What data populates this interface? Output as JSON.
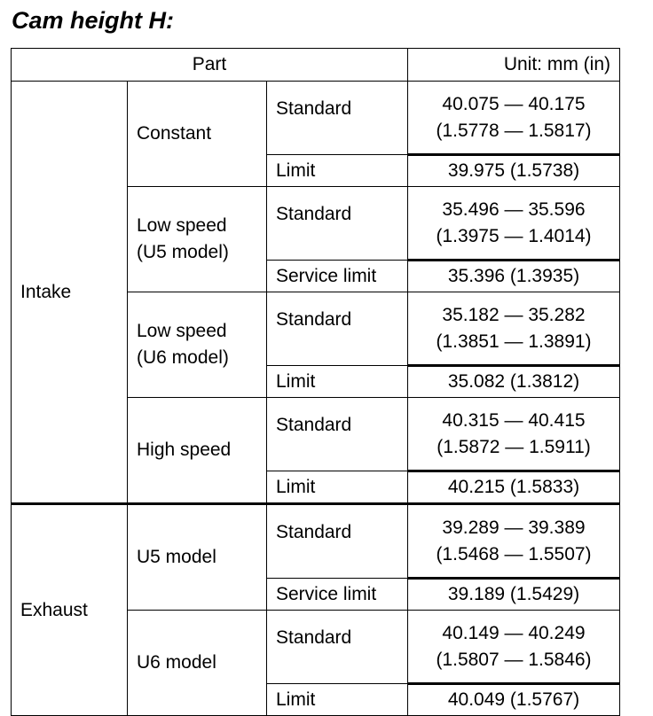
{
  "title": "Cam height H:",
  "table": {
    "header": {
      "part": "Part",
      "unit": "Unit: mm (in)"
    },
    "groups": [
      {
        "name": "Intake",
        "subgroups": [
          {
            "name": [
              "Constant"
            ],
            "items": [
              {
                "label": "Standard",
                "value": [
                  "40.075 — 40.175",
                  "(1.5778 — 1.5817)"
                ]
              },
              {
                "label": "Limit",
                "value": [
                  "39.975 (1.5738)"
                ]
              }
            ]
          },
          {
            "name": [
              "Low speed",
              "(U5 model)"
            ],
            "items": [
              {
                "label": "Standard",
                "value": [
                  "35.496 — 35.596",
                  "(1.3975 — 1.4014)"
                ]
              },
              {
                "label": "Service limit",
                "value": [
                  "35.396 (1.3935)"
                ]
              }
            ]
          },
          {
            "name": [
              "Low speed",
              "(U6 model)"
            ],
            "items": [
              {
                "label": "Standard",
                "value": [
                  "35.182 — 35.282",
                  "(1.3851 — 1.3891)"
                ]
              },
              {
                "label": "Limit",
                "value": [
                  "35.082 (1.3812)"
                ]
              }
            ]
          },
          {
            "name": [
              "High speed"
            ],
            "items": [
              {
                "label": "Standard",
                "value": [
                  "40.315 — 40.415",
                  "(1.5872 — 1.5911)"
                ]
              },
              {
                "label": "Limit",
                "value": [
                  "40.215 (1.5833)"
                ]
              }
            ]
          }
        ]
      },
      {
        "name": "Exhaust",
        "subgroups": [
          {
            "name": [
              "U5 model"
            ],
            "items": [
              {
                "label": "Standard",
                "value": [
                  "39.289 — 39.389",
                  "(1.5468 — 1.5507)"
                ]
              },
              {
                "label": "Service limit",
                "value": [
                  "39.189 (1.5429)"
                ]
              }
            ]
          },
          {
            "name": [
              "U6 model"
            ],
            "items": [
              {
                "label": "Standard",
                "value": [
                  "40.149 — 40.249",
                  "(1.5807 — 1.5846)"
                ]
              },
              {
                "label": "Limit",
                "value": [
                  "40.049 (1.5767)"
                ]
              }
            ]
          }
        ]
      }
    ]
  }
}
